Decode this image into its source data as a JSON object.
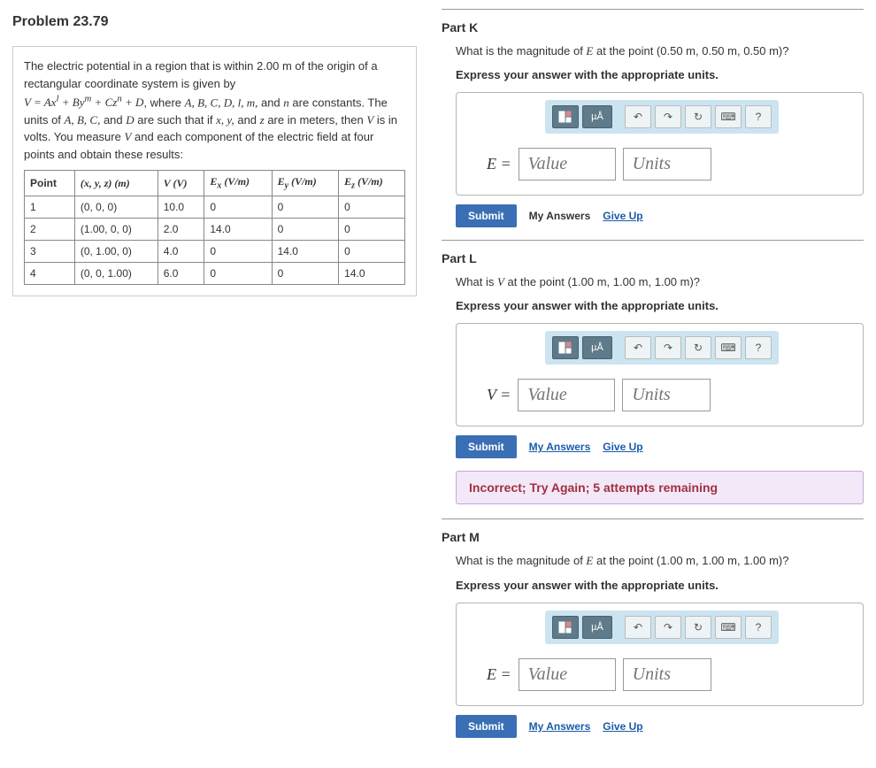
{
  "problem_title": "Problem 23.79",
  "problem_description": "The electric potential in a region that is within 2.00 m of the origin of a rectangular coordinate system is given by",
  "problem_formula": "V = Axˡ + Byᵐ + Czⁿ + D, where A, B, C, D, l, m, and n are constants. The units of A, B, C, and D are such that if x, y, and z are in meters, then V is in volts. You measure V and each component of the electric field at four points and obtain these results:",
  "table": {
    "headers": [
      "Point",
      "(x, y, z) (m)",
      "V (V)",
      "Eₓ (V/m)",
      "Eᵧ (V/m)",
      "E_z (V/m)"
    ],
    "rows": [
      [
        "1",
        "(0, 0, 0)",
        "10.0",
        "0",
        "0",
        "0"
      ],
      [
        "2",
        "(1.00, 0, 0)",
        "2.0",
        "14.0",
        "0",
        "0"
      ],
      [
        "3",
        "(0, 1.00, 0)",
        "4.0",
        "0",
        "14.0",
        "0"
      ],
      [
        "4",
        "(0, 0, 1.00)",
        "6.0",
        "0",
        "0",
        "14.0"
      ]
    ]
  },
  "parts": {
    "K": {
      "title": "Part K",
      "question": "What is the magnitude of E at the point (0.50 m, 0.50 m, 0.50 m)?",
      "instruction": "Express your answer with the appropriate units.",
      "variable": "E =",
      "value_placeholder": "Value",
      "units_placeholder": "Units"
    },
    "L": {
      "title": "Part L",
      "question": "What is V at the point (1.00 m, 1.00 m, 1.00 m)?",
      "instruction": "Express your answer with the appropriate units.",
      "variable": "V =",
      "value_placeholder": "Value",
      "units_placeholder": "Units",
      "feedback": "Incorrect; Try Again; 5 attempts remaining"
    },
    "M": {
      "title": "Part M",
      "question": "What is the magnitude of E at the point (1.00 m, 1.00 m, 1.00 m)?",
      "instruction": "Express your answer with the appropriate units.",
      "variable": "E =",
      "value_placeholder": "Value",
      "units_placeholder": "Units"
    }
  },
  "buttons": {
    "submit": "Submit",
    "my_answers": "My Answers",
    "give_up": "Give Up"
  },
  "toolbar": {
    "template_icon": "▯▯",
    "units_icon": "µÅ",
    "undo": "↶",
    "redo": "↷",
    "reset": "↻",
    "keyboard": "⌨",
    "help": "?"
  }
}
